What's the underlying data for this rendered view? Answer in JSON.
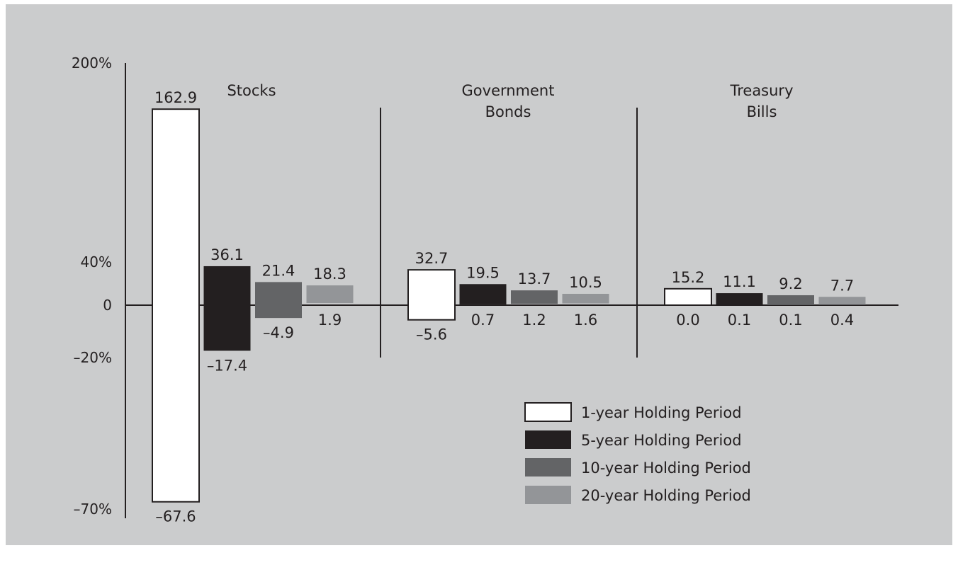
{
  "chart_data": {
    "type": "bar",
    "title": "",
    "xlabel": "",
    "ylabel": "",
    "y_ticks": [
      "200%",
      "40%",
      "0",
      "–20%",
      "–70%"
    ],
    "categories": [
      {
        "label_lines": [
          "Stocks"
        ]
      },
      {
        "label_lines": [
          "Government",
          "Bonds"
        ]
      },
      {
        "label_lines": [
          "Treasury",
          "Bills"
        ]
      }
    ],
    "series": [
      {
        "name": "1-year Holding Period",
        "color": "#ffffff",
        "high": [
          162.9,
          32.7,
          15.2
        ],
        "low": [
          -67.6,
          -5.6,
          0.0
        ],
        "high_labels": [
          "162.9",
          "32.7",
          "15.2"
        ],
        "low_labels": [
          "–67.6",
          "–5.6",
          "0.0"
        ]
      },
      {
        "name": "5-year Holding Period",
        "color": "#231f20",
        "high": [
          36.1,
          19.5,
          11.1
        ],
        "low": [
          -17.4,
          0.7,
          0.1
        ],
        "high_labels": [
          "36.1",
          "19.5",
          "11.1"
        ],
        "low_labels": [
          "–17.4",
          "0.7",
          "0.1"
        ]
      },
      {
        "name": "10-year Holding Period",
        "color": "#636466",
        "high": [
          21.4,
          13.7,
          9.2
        ],
        "low": [
          -4.9,
          1.2,
          0.1
        ],
        "high_labels": [
          "21.4",
          "13.7",
          "9.2"
        ],
        "low_labels": [
          "–4.9",
          "1.2",
          "0.1"
        ]
      },
      {
        "name": "20-year Holding Period",
        "color": "#939598",
        "high": [
          18.3,
          10.5,
          7.7
        ],
        "low": [
          1.9,
          1.6,
          0.4
        ],
        "high_labels": [
          "18.3",
          "10.5",
          "7.7"
        ],
        "low_labels": [
          "1.9",
          "1.6",
          "0.4"
        ]
      }
    ],
    "legend_position": "bottom-right",
    "grid": false
  }
}
